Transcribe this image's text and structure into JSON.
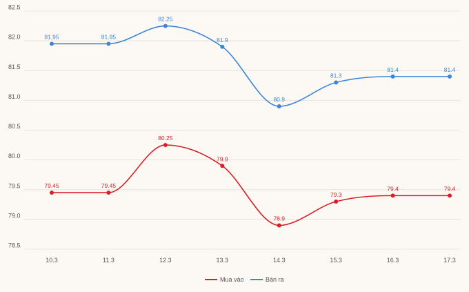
{
  "chart_data": {
    "type": "line",
    "categories": [
      "10.3",
      "11.3",
      "12.3",
      "13.3",
      "14.3",
      "15.3",
      "16.3",
      "17.3"
    ],
    "series": [
      {
        "name": "Mua vào",
        "color": "#d91f26",
        "values": [
          79.45,
          79.45,
          80.25,
          79.9,
          78.9,
          79.3,
          79.4,
          79.4
        ],
        "labels": [
          "79.45",
          "79.45",
          "80.25",
          "79.9",
          "78.9",
          "79.3",
          "79.4",
          "79.4"
        ]
      },
      {
        "name": "Bán ra",
        "color": "#3b86d6",
        "values": [
          81.95,
          81.95,
          82.25,
          81.9,
          80.9,
          81.3,
          81.4,
          81.4
        ],
        "labels": [
          "81.95",
          "81.95",
          "82.25",
          "81.9",
          "80.9",
          "81.3",
          "81.4",
          "81.4"
        ]
      }
    ],
    "yticks": [
      "78.5",
      "79.0",
      "79.5",
      "80.0",
      "80.5",
      "81.0",
      "81.5",
      "82.0",
      "82.5"
    ],
    "ylim": [
      78.5,
      82.5
    ],
    "grid": true,
    "legend": "bottom-center",
    "title": "",
    "xlabel": "",
    "ylabel": ""
  }
}
